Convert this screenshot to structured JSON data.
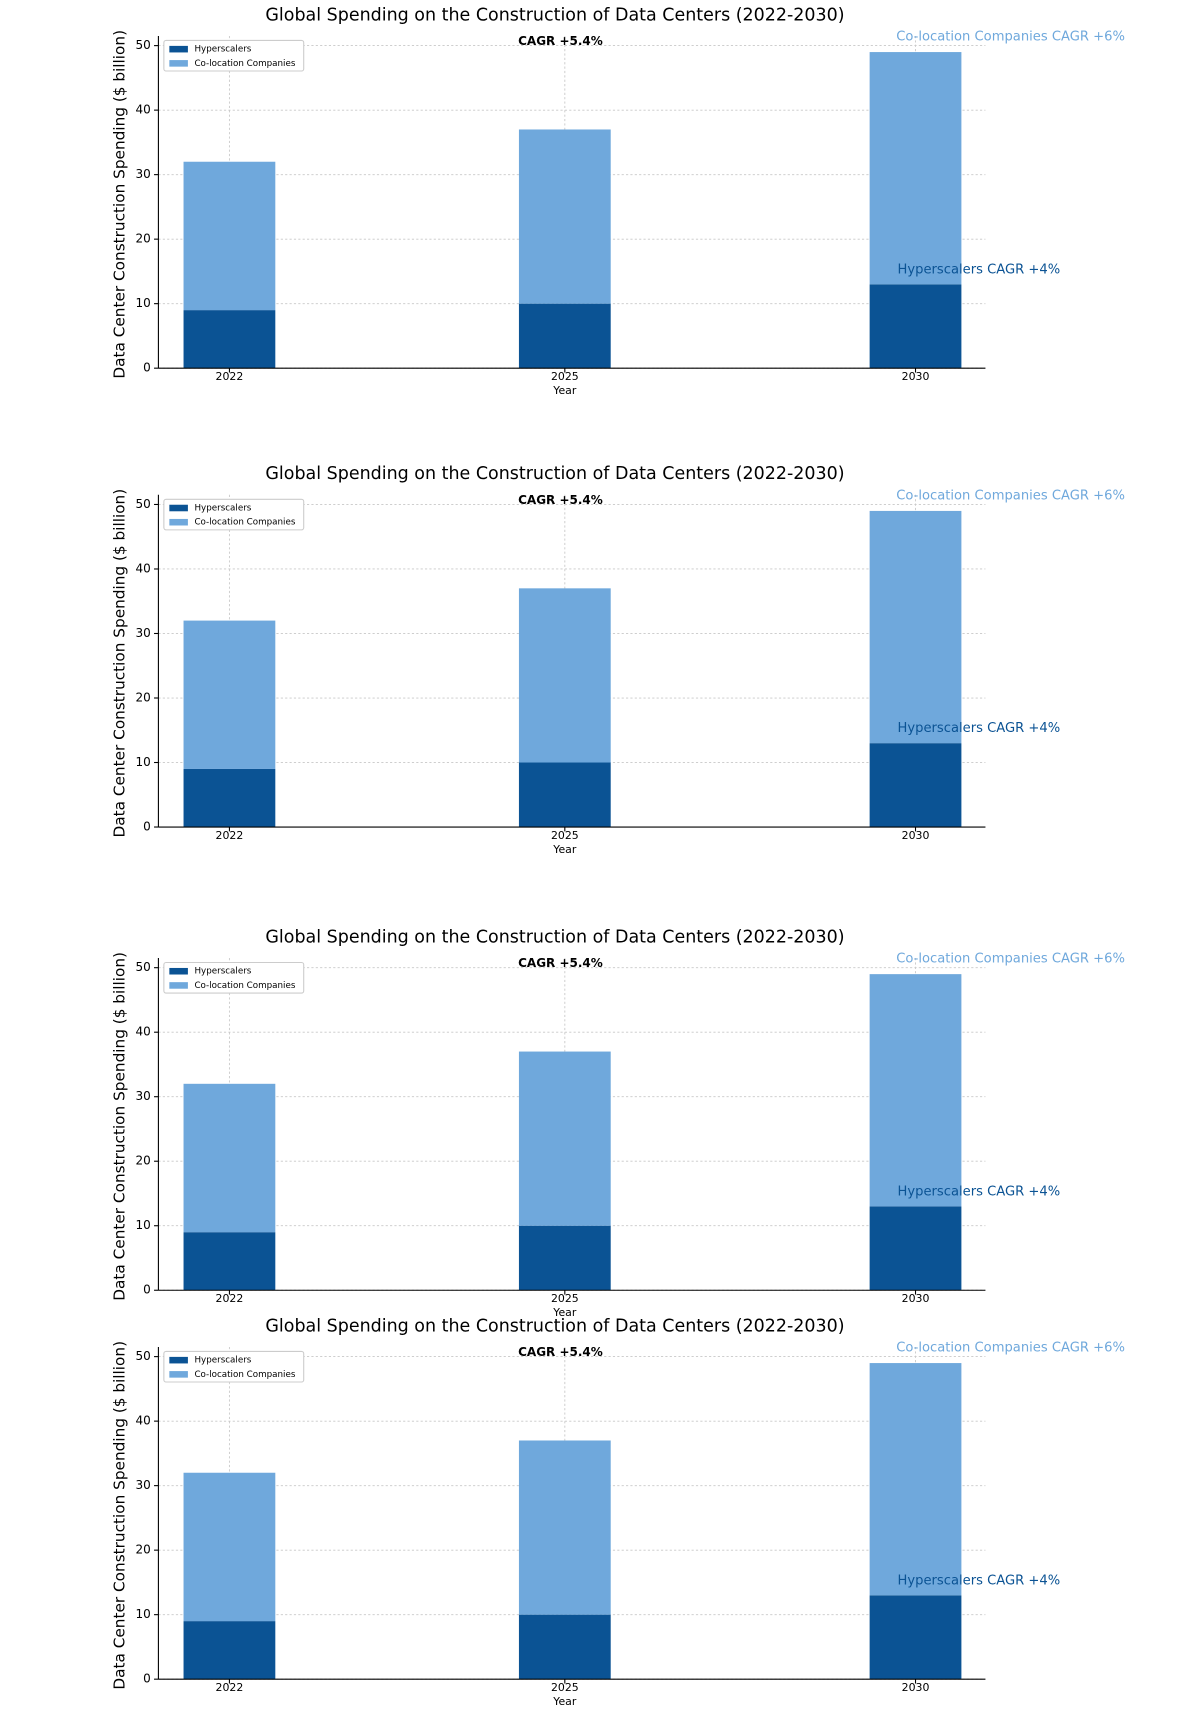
{
  "chart_data": [
    {
      "type": "stacked_bar",
      "title": "Global Spending on the Construction of Data Centers (2022-2030)",
      "x_label": "Year",
      "y_label": "Data Center Construction Spending ($ billion)",
      "categories": [
        "2022",
        "2025",
        "2030"
      ],
      "series": [
        {
          "name": "Hyperscalers",
          "color": "#0b5394",
          "values": [
            9,
            10,
            13
          ]
        },
        {
          "name": "Co-location Companies",
          "color": "#6fa8dc",
          "values": [
            23,
            27,
            36
          ]
        }
      ],
      "ylim": [
        0,
        51.5
      ],
      "yticks": [
        0,
        10,
        20,
        30,
        40,
        50
      ],
      "grid": true,
      "legend": "upper left",
      "annotations": [
        {
          "text": "CAGR +5.4%",
          "color": "#000000"
        },
        {
          "text": "Co-location Companies CAGR +6%",
          "color": "#6fa8dc"
        },
        {
          "text": "Hyperscalers CAGR +4%",
          "color": "#0b5394"
        }
      ]
    },
    {
      "type": "stacked_bar",
      "title": "Global Spending on the Construction of Data Centers (2022-2030)",
      "x_label": "Year",
      "y_label": "Data Center Construction Spending ($ billion)",
      "categories": [
        "2022",
        "2025",
        "2030"
      ],
      "series": [
        {
          "name": "Hyperscalers",
          "color": "#0b5394",
          "values": [
            9,
            10,
            13
          ]
        },
        {
          "name": "Co-location Companies",
          "color": "#6fa8dc",
          "values": [
            23,
            27,
            36
          ]
        }
      ],
      "ylim": [
        0,
        51.5
      ],
      "yticks": [
        0,
        10,
        20,
        30,
        40,
        50
      ],
      "grid": true,
      "legend": "upper left",
      "annotations": [
        {
          "text": "CAGR +5.4%",
          "color": "#000000"
        },
        {
          "text": "Co-location Companies CAGR +6%",
          "color": "#6fa8dc"
        },
        {
          "text": "Hyperscalers CAGR +4%",
          "color": "#0b5394"
        }
      ]
    },
    {
      "type": "stacked_bar",
      "title": "Global Spending on the Construction of Data Centers (2022-2030)",
      "x_label": "Year",
      "y_label": "Data Center Construction Spending ($ billion)",
      "categories": [
        "2022",
        "2025",
        "2030"
      ],
      "series": [
        {
          "name": "Hyperscalers",
          "color": "#0b5394",
          "values": [
            9,
            10,
            13
          ]
        },
        {
          "name": "Co-location Companies",
          "color": "#6fa8dc",
          "values": [
            23,
            27,
            36
          ]
        }
      ],
      "ylim": [
        0,
        51.5
      ],
      "yticks": [
        0,
        10,
        20,
        30,
        40,
        50
      ],
      "grid": true,
      "legend": "upper left",
      "annotations": [
        {
          "text": "CAGR +5.4%",
          "color": "#000000"
        },
        {
          "text": "Co-location Companies CAGR +6%",
          "color": "#6fa8dc"
        },
        {
          "text": "Hyperscalers CAGR +4%",
          "color": "#0b5394"
        }
      ]
    },
    {
      "type": "stacked_bar",
      "title": "Global Spending on the Construction of Data Centers (2022-2030)",
      "x_label": "Year",
      "y_label": "Data Center Construction Spending ($ billion)",
      "categories": [
        "2022",
        "2025",
        "2030"
      ],
      "series": [
        {
          "name": "Hyperscalers",
          "color": "#0b5394",
          "values": [
            9,
            10,
            13
          ]
        },
        {
          "name": "Co-location Companies",
          "color": "#6fa8dc",
          "values": [
            23,
            27,
            36
          ]
        }
      ],
      "ylim": [
        0,
        51.5
      ],
      "yticks": [
        0,
        10,
        20,
        30,
        40,
        50
      ],
      "grid": true,
      "legend": "upper left",
      "annotations": [
        {
          "text": "CAGR +5.4%",
          "color": "#000000"
        },
        {
          "text": "Co-location Companies CAGR +6%",
          "color": "#6fa8dc"
        },
        {
          "text": "Hyperscalers CAGR +4%",
          "color": "#0b5394"
        }
      ]
    }
  ]
}
